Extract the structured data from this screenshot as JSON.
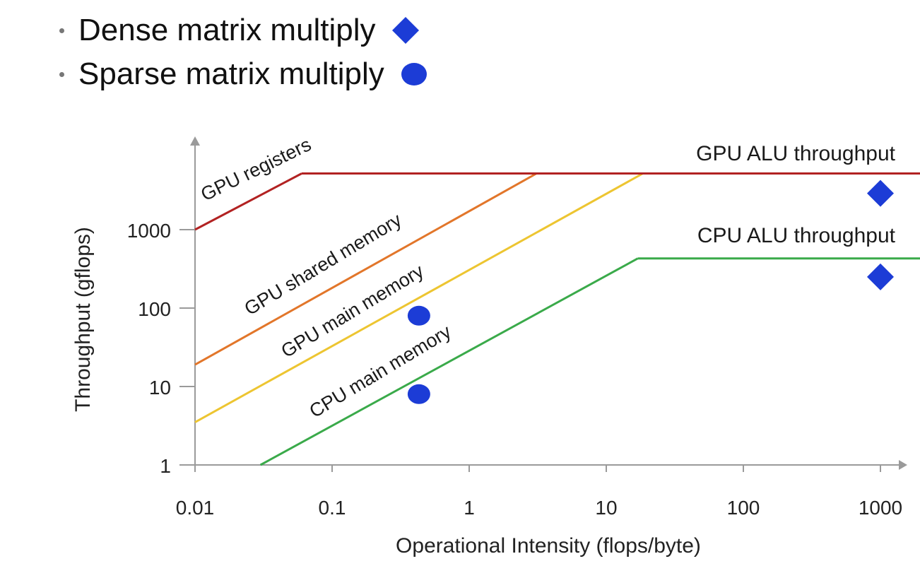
{
  "legend": [
    {
      "label": "Dense matrix multiply",
      "marker": "diamond"
    },
    {
      "label": "Sparse matrix multiply",
      "marker": "circle"
    }
  ],
  "chart_data": {
    "type": "line",
    "x_scale": "log",
    "y_scale": "log",
    "xlabel": "Operational Intensity (flops/byte)",
    "ylabel": "Throughput (gflops)",
    "xlim": [
      0.01,
      2000
    ],
    "ylim": [
      1,
      8000
    ],
    "x_ticks": [
      "0.01",
      "0.1",
      "1",
      "10",
      "100",
      "1000"
    ],
    "y_ticks": [
      "1",
      "10",
      "100",
      "1000"
    ],
    "grid": false,
    "lines": [
      {
        "label": "GPU registers",
        "color": "#b22222",
        "points": [
          [
            0.01,
            1000
          ],
          [
            0.06,
            5200
          ]
        ]
      },
      {
        "label": "GPU shared memory",
        "color": "#e2762a",
        "points": [
          [
            0.01,
            19
          ],
          [
            3.1,
            5200
          ]
        ]
      },
      {
        "label": "GPU main memory",
        "color": "#edc531",
        "points": [
          [
            0.01,
            3.5
          ],
          [
            18.5,
            5200
          ]
        ]
      },
      {
        "label": "CPU main memory",
        "color": "#3aaa4a",
        "points": [
          [
            0.03,
            1
          ],
          [
            17,
            430
          ]
        ]
      },
      {
        "label": "GPU ALU throughput",
        "color": "#b22222",
        "points": [
          [
            0.06,
            5200
          ],
          [
            2000,
            5200
          ]
        ]
      },
      {
        "label": "CPU ALU throughput",
        "color": "#3aaa4a",
        "points": [
          [
            17,
            430
          ],
          [
            2000,
            430
          ]
        ]
      }
    ],
    "points": [
      {
        "series": "Dense matrix multiply",
        "marker": "diamond",
        "x": 1000,
        "y": 2900
      },
      {
        "series": "Dense matrix multiply",
        "marker": "diamond",
        "x": 1000,
        "y": 250
      },
      {
        "series": "Sparse matrix multiply",
        "marker": "circle",
        "x": 0.43,
        "y": 80
      },
      {
        "series": "Sparse matrix multiply",
        "marker": "circle",
        "x": 0.43,
        "y": 8
      }
    ],
    "marker_color": "#1c3cd6"
  }
}
